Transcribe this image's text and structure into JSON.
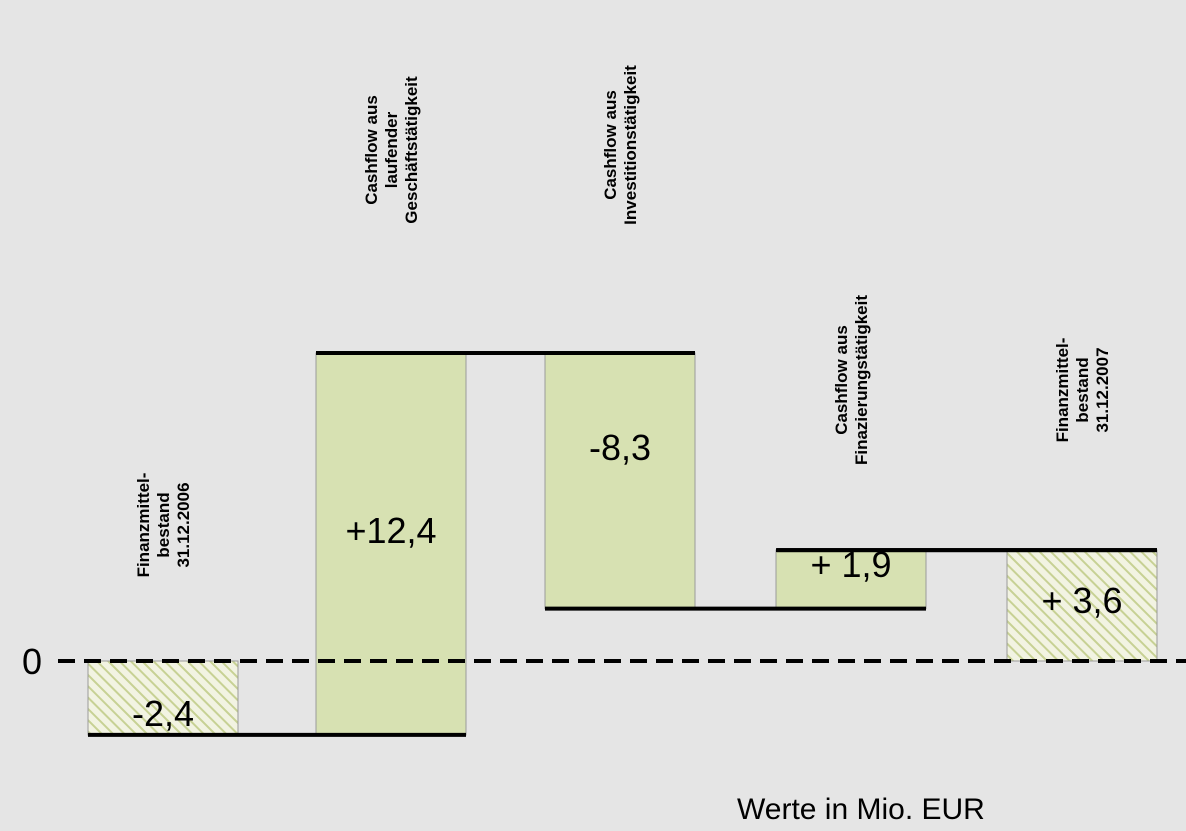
{
  "chart_data": {
    "type": "bar",
    "subtype": "waterfall",
    "categories": [
      "Finanzmittel-\nbestand\n31.12.2006",
      "Cashflow aus\nlaufender\nGeschäftstätigkeit",
      "Cashflow aus\nInvestitionstätigkeit",
      "Cashflow aus\nFinazierungstätigkeit",
      "Finanzmittel-\nbestand\n31.12.2007"
    ],
    "values": [
      -2.4,
      12.4,
      -8.3,
      1.9,
      3.6
    ],
    "kinds": [
      "total",
      "delta",
      "delta",
      "delta",
      "total"
    ],
    "value_labels": [
      "-2,4",
      "+12,4",
      "-8,3",
      "+ 1,9",
      "+ 3,6"
    ],
    "zero_label": "0",
    "unit_note": "Werte in Mio. EUR",
    "ylim": [
      -2.8,
      10.2
    ],
    "colors": {
      "background": "#e5e5e5",
      "delta_fill": "#d7e1b2",
      "total_fill": "#f2f3e2",
      "hatch": "#c7d194",
      "stroke": "#000000"
    }
  }
}
